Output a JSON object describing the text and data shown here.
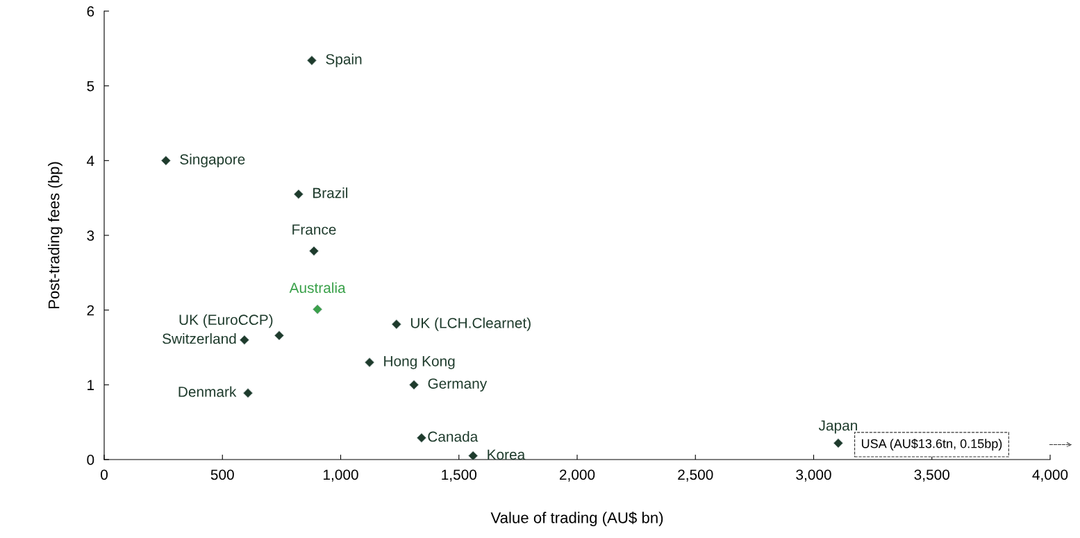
{
  "chart_data": {
    "type": "scatter",
    "xlabel": "Value of trading (AU$ bn)",
    "ylabel": "Post-trading fees (bp)",
    "xlim": [
      0,
      4000
    ],
    "ylim": [
      0,
      6
    ],
    "xticks": [
      0,
      500,
      {
        "value": 1000,
        "label": "1,000"
      },
      {
        "value": 1500,
        "label": "1,500"
      },
      {
        "value": 2000,
        "label": "2,000"
      },
      {
        "value": 2500,
        "label": "2,500"
      },
      {
        "value": 3000,
        "label": "3,000"
      },
      {
        "value": 3500,
        "label": "3,500"
      },
      {
        "value": 4000,
        "label": "4,000"
      }
    ],
    "yticks": [
      0,
      1,
      2,
      3,
      4,
      5,
      6
    ],
    "marker": "diamond",
    "grid": false,
    "legend": false,
    "series": [
      {
        "name": "Spain",
        "color": "#1e3b2c",
        "x": [
          878
        ],
        "values": [
          5.34
        ]
      },
      {
        "name": "Singapore",
        "color": "#1e3b2c",
        "x": [
          261
        ],
        "values": [
          4.0
        ]
      },
      {
        "name": "Brazil",
        "color": "#1e3b2c",
        "x": [
          822
        ],
        "values": [
          3.55
        ]
      },
      {
        "name": "France",
        "color": "#1e3b2c",
        "x": [
          887
        ],
        "values": [
          2.79
        ]
      },
      {
        "name": "Australia",
        "color": "#3aa14a",
        "x": [
          902
        ],
        "values": [
          2.01
        ]
      },
      {
        "name": "UK (LCH.Clearnet)",
        "color": "#1e3b2c",
        "x": [
          1236
        ],
        "values": [
          1.81
        ]
      },
      {
        "name": "UK (EuroCCP)",
        "color": "#1e3b2c",
        "x": [
          740
        ],
        "values": [
          1.66
        ]
      },
      {
        "name": "Switzerland",
        "color": "#1e3b2c",
        "x": [
          593
        ],
        "values": [
          1.6
        ]
      },
      {
        "name": "Hong Kong",
        "color": "#1e3b2c",
        "x": [
          1122
        ],
        "values": [
          1.3
        ]
      },
      {
        "name": "Germany",
        "color": "#1e3b2c",
        "x": [
          1310
        ],
        "values": [
          1.0
        ]
      },
      {
        "name": "Denmark",
        "color": "#1e3b2c",
        "x": [
          608
        ],
        "values": [
          0.89
        ]
      },
      {
        "name": "Canada",
        "color": "#1e3b2c",
        "x": [
          1342
        ],
        "values": [
          0.29
        ]
      },
      {
        "name": "Korea",
        "color": "#1e3b2c",
        "x": [
          1560
        ],
        "values": [
          0.05
        ]
      },
      {
        "name": "Japan",
        "color": "#1e3b2c",
        "x": [
          3104
        ],
        "values": [
          0.22
        ]
      }
    ],
    "annotations": [
      "USA (AU$13.6tn, 0.15bp)"
    ]
  }
}
